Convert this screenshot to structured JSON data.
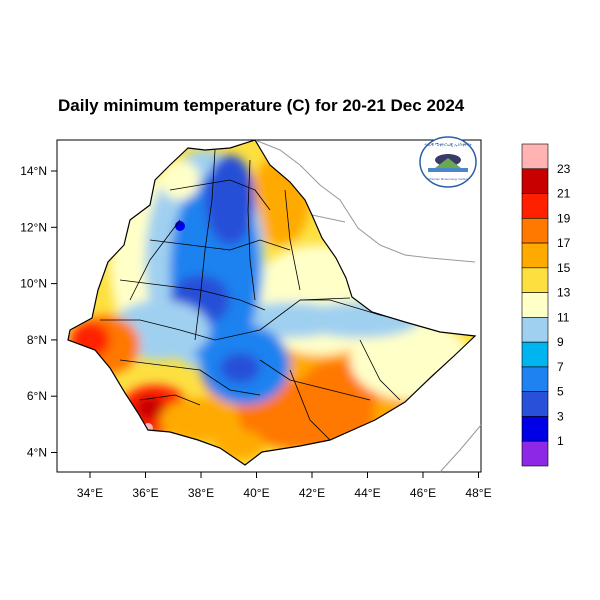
{
  "title": "Daily minimum temperature (C) for 20-21 Dec 2024",
  "logo_text": [
    "ሃገራዊ ሜቲዮሮሎጂ ኢንስቲትዩት",
    "Ethiopian Meteorology Institute"
  ],
  "x_ticks": [
    "34°E",
    "36°E",
    "38°E",
    "40°E",
    "42°E",
    "44°E",
    "46°E",
    "48°E"
  ],
  "y_ticks": [
    "14°N",
    "12°N",
    "10°N",
    "8°N",
    "6°N",
    "4°N"
  ],
  "legend": {
    "labels": [
      "23",
      "21",
      "19",
      "17",
      "15",
      "13",
      "11",
      "9",
      "7",
      "5",
      "3",
      "1"
    ],
    "colors": [
      "#ffb3b3",
      "#c80000",
      "#ff2000",
      "#ff7800",
      "#ffaa00",
      "#fde040",
      "#ffffc8",
      "#a0d0f0",
      "#00b4f0",
      "#1e82f0",
      "#2850d8",
      "#0000e6",
      "#8c28e6"
    ]
  }
}
